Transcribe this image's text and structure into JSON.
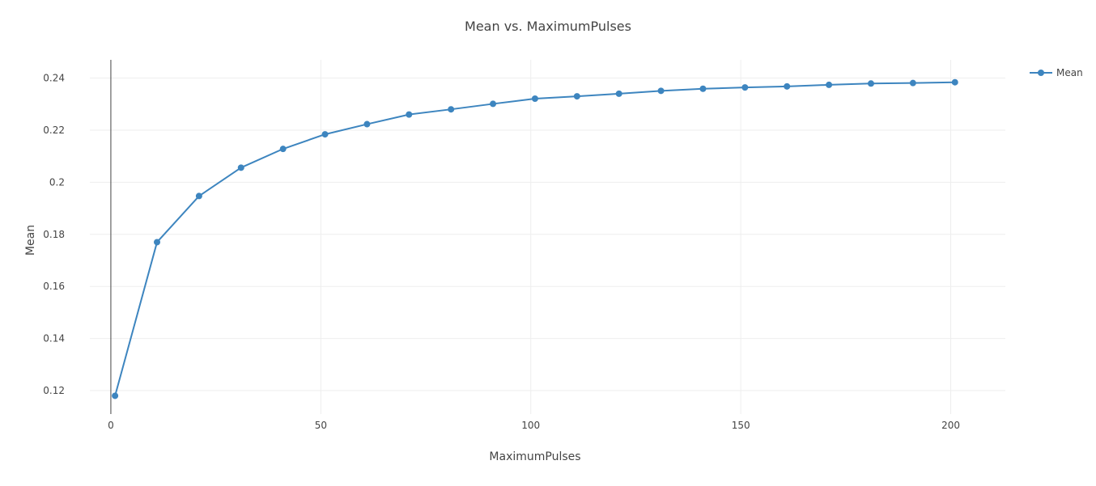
{
  "chart_data": {
    "type": "line",
    "title": "Mean vs. MaximumPulses",
    "xlabel": "MaximumPulses",
    "ylabel": "Mean",
    "xlim": [
      -5,
      213
    ],
    "ylim": [
      0.111,
      0.247
    ],
    "x_ticks": [
      0,
      50,
      100,
      150,
      200
    ],
    "y_ticks": [
      0.12,
      0.14,
      0.16,
      0.18,
      0.2,
      0.22,
      0.24
    ],
    "y_tick_labels": [
      "0.12",
      "0.14",
      "0.16",
      "0.18",
      "0.2",
      "0.22",
      "0.24"
    ],
    "grid": true,
    "legend_position": "top-right",
    "series": [
      {
        "name": "Mean",
        "color": "#3d85bf",
        "x": [
          1,
          11,
          21,
          31,
          41,
          51,
          61,
          71,
          81,
          91,
          101,
          111,
          121,
          131,
          141,
          151,
          161,
          171,
          181,
          191,
          201
        ],
        "values": [
          0.118,
          0.177,
          0.1947,
          0.2056,
          0.2128,
          0.2184,
          0.2223,
          0.226,
          0.228,
          0.2301,
          0.2321,
          0.233,
          0.234,
          0.2351,
          0.2359,
          0.2364,
          0.2368,
          0.2374,
          0.2379,
          0.2381,
          0.2384
        ]
      }
    ]
  }
}
